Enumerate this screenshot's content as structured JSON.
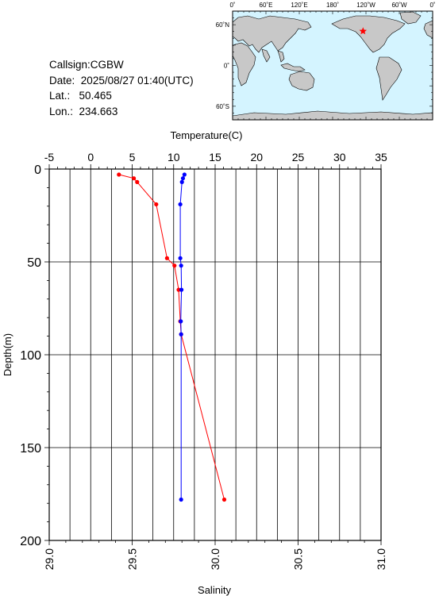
{
  "station": {
    "callsign_label": "Callsign:",
    "callsign": "CGBW",
    "date_label": "Date:",
    "date": "2025/08/27 01:40(UTC)",
    "lat_label": "Lat.:",
    "lat": "50.465",
    "lon_label": "Lon.:",
    "lon": "234.663"
  },
  "map": {
    "lon_labels": [
      "0˚",
      "60˚E",
      "120˚E",
      "180˚",
      "120˚W",
      "60˚W",
      "0˚"
    ],
    "lat_labels": [
      "60˚N",
      "0˚",
      "60˚S"
    ],
    "ocean_color": "#d4f4ff",
    "land_color": "#c8c8c8",
    "marker_color": "#ff0000",
    "marker_icon": "star-icon",
    "marker_lon": 234.663,
    "marker_lat": 50.465
  },
  "chart_data": {
    "type": "line",
    "top_axis_title": "Temperature(C)",
    "bottom_axis_title": "Salinity",
    "left_axis_title": "Depth(m)",
    "temperature_ticks": [
      "-5",
      "0",
      "5",
      "10",
      "15",
      "20",
      "25",
      "30",
      "35"
    ],
    "salinity_ticks": [
      "29.0",
      "29.5",
      "30.0",
      "30.5",
      "31.0"
    ],
    "depth_ticks": [
      "0",
      "50",
      "100",
      "150",
      "200"
    ],
    "temperature_range": [
      -5,
      35
    ],
    "salinity_range": [
      29.0,
      31.0
    ],
    "depth_range": [
      0,
      200
    ],
    "grid": true,
    "series": [
      {
        "color": "#ff0000",
        "axis": "temperature",
        "points": [
          {
            "depth": 3,
            "value": 3.4
          },
          {
            "depth": 5,
            "value": 5.2
          },
          {
            "depth": 7,
            "value": 5.6
          },
          {
            "depth": 19,
            "value": 7.9
          },
          {
            "depth": 48,
            "value": 9.2
          },
          {
            "depth": 52,
            "value": 10.1
          },
          {
            "depth": 65,
            "value": 10.6
          },
          {
            "depth": 82,
            "value": 10.8
          },
          {
            "depth": 89,
            "value": 10.9
          },
          {
            "depth": 178,
            "value": 16.1
          }
        ]
      },
      {
        "color": "#0000ff",
        "axis": "salinity",
        "points": [
          {
            "depth": 3,
            "value": 29.815
          },
          {
            "depth": 5,
            "value": 29.806
          },
          {
            "depth": 7,
            "value": 29.8
          },
          {
            "depth": 19,
            "value": 29.79
          },
          {
            "depth": 48,
            "value": 29.79
          },
          {
            "depth": 52,
            "value": 29.795
          },
          {
            "depth": 65,
            "value": 29.797
          },
          {
            "depth": 82,
            "value": 29.793
          },
          {
            "depth": 89,
            "value": 29.795
          },
          {
            "depth": 178,
            "value": 29.795
          }
        ]
      }
    ]
  }
}
